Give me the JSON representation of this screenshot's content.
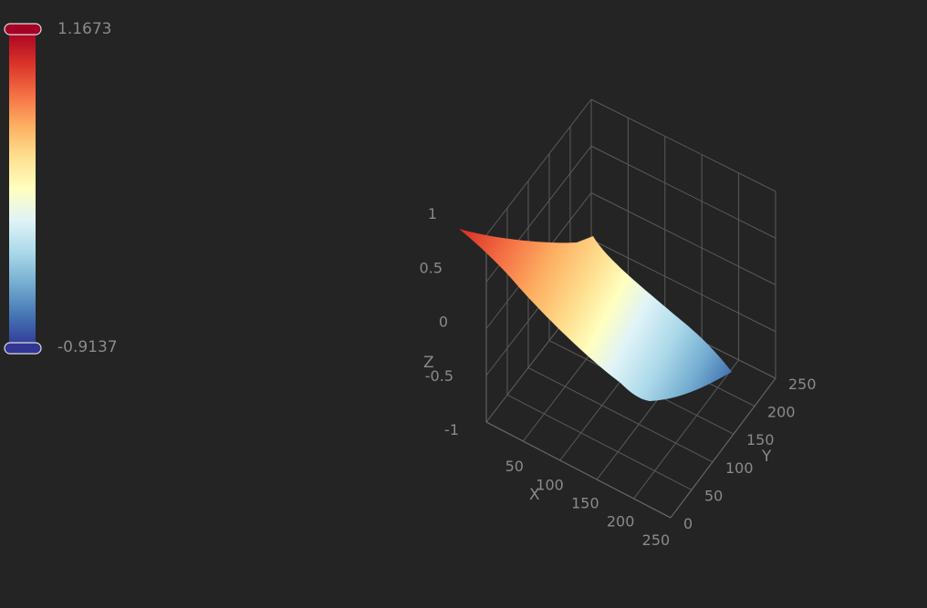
{
  "chart_data": {
    "type": "surface",
    "xlabel": "X",
    "ylabel": "Y",
    "zlabel": "Z",
    "x_ticks": [
      "50",
      "100",
      "150",
      "200",
      "250"
    ],
    "y_ticks": [
      "0",
      "50",
      "100",
      "150",
      "200",
      "250"
    ],
    "z_ticks": [
      "-1",
      "-0.5",
      "0",
      "0.5",
      "1"
    ],
    "xlim": [
      0,
      250
    ],
    "ylim": [
      0,
      250
    ],
    "zlim": [
      -1,
      1
    ],
    "visual_map": {
      "max_label": "1.1673",
      "min_label": "-0.9137",
      "min": -0.9137,
      "max": 1.1673
    },
    "colors": [
      "#313695",
      "#4575b4",
      "#74add1",
      "#abd9e9",
      "#e0f3f8",
      "#ffffbf",
      "#fee090",
      "#fdae61",
      "#f46d43",
      "#d73027",
      "#a50026"
    ],
    "surface_samples": {
      "x": [
        0,
        50,
        100,
        150,
        200,
        250
      ],
      "y": [
        0,
        50,
        100,
        150,
        200,
        250
      ],
      "z_at_y_min": [
        1.05,
        0.7,
        0.2,
        -0.25,
        -0.55,
        -0.7
      ],
      "z_at_y_max": [
        1.0,
        0.55,
        0.1,
        -0.35,
        -0.7,
        -0.9
      ]
    },
    "grid": true,
    "background": "#242424"
  }
}
